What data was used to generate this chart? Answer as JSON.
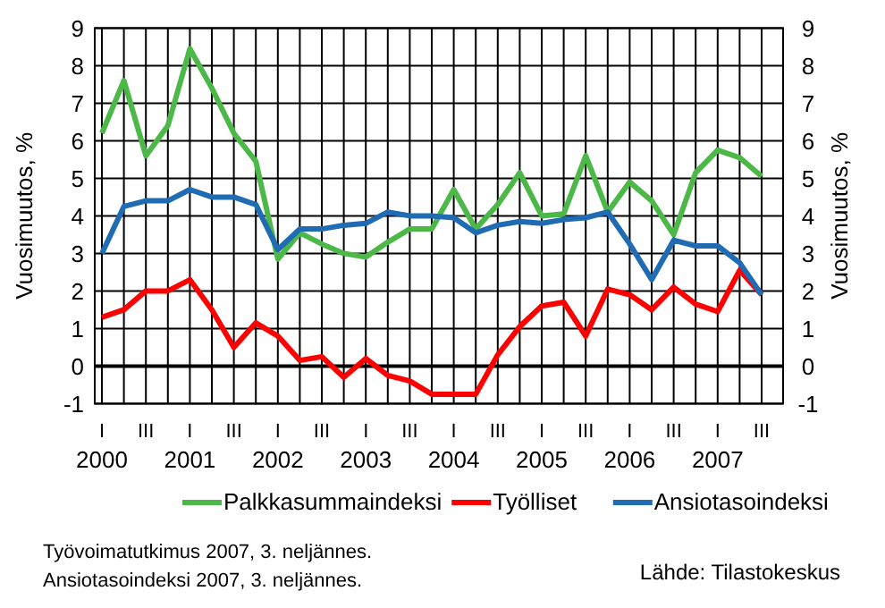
{
  "chart_data": {
    "type": "line",
    "categories": [
      "I\n2000",
      null,
      "III",
      null,
      "I\n2001",
      null,
      "III",
      null,
      "I\n2002",
      null,
      "III",
      null,
      "I\n2003",
      null,
      "III",
      null,
      "I\n2004",
      null,
      "III",
      null,
      "I\n2005",
      null,
      "III",
      null,
      "I\n2006",
      null,
      "III",
      null,
      "I\n2007",
      null,
      "III"
    ],
    "series": [
      {
        "name": "Palkkasummaindeksi",
        "color": "#4cb848",
        "values": [
          6.2,
          7.6,
          5.6,
          6.4,
          8.45,
          7.4,
          6.2,
          5.45,
          2.85,
          3.55,
          3.25,
          3.0,
          2.9,
          3.3,
          3.65,
          3.65,
          4.7,
          3.65,
          4.3,
          5.15,
          4.0,
          4.05,
          5.6,
          4.1,
          4.9,
          4.4,
          3.5,
          5.15,
          5.75,
          5.55,
          5.05
        ]
      },
      {
        "name": "Työlliset",
        "color": "#ff0000",
        "values": [
          1.3,
          1.5,
          2.0,
          2.0,
          2.3,
          1.5,
          0.5,
          1.15,
          0.8,
          0.15,
          0.25,
          -0.3,
          0.2,
          -0.25,
          -0.4,
          -0.75,
          -0.75,
          -0.75,
          0.3,
          1.05,
          1.6,
          1.7,
          0.8,
          2.05,
          1.9,
          1.5,
          2.1,
          1.65,
          1.45,
          2.55,
          1.9
        ]
      },
      {
        "name": "Ansiotasoindeksi",
        "color": "#1f6bb4",
        "values": [
          3.0,
          4.25,
          4.4,
          4.4,
          4.7,
          4.5,
          4.5,
          4.3,
          3.1,
          3.65,
          3.65,
          3.75,
          3.8,
          4.1,
          4.0,
          4.0,
          3.95,
          3.55,
          3.75,
          3.85,
          3.8,
          3.9,
          3.95,
          4.1,
          3.25,
          2.3,
          3.35,
          3.2,
          3.2,
          2.75,
          1.9
        ]
      }
    ],
    "ylabel": "Vuosimuutos, %",
    "y2label": "Vuosimuutos, %",
    "ylim": [
      -1,
      9
    ],
    "yticks": [
      -1,
      0,
      1,
      2,
      3,
      4,
      5,
      6,
      7,
      8,
      9
    ],
    "y2lim": [
      -1,
      9
    ],
    "y2ticks": [
      -1,
      0,
      1,
      2,
      3,
      4,
      5,
      6,
      7,
      8,
      9
    ],
    "grid": true,
    "legend": "bottom",
    "marker": "none",
    "line_style": "solid",
    "annotations": [
      "Työvoimatutkimus 2007, 3. neljännes.",
      "Ansiotasoindeksi 2007, 3. neljännes.",
      "Lähde: Tilastokeskus"
    ]
  }
}
